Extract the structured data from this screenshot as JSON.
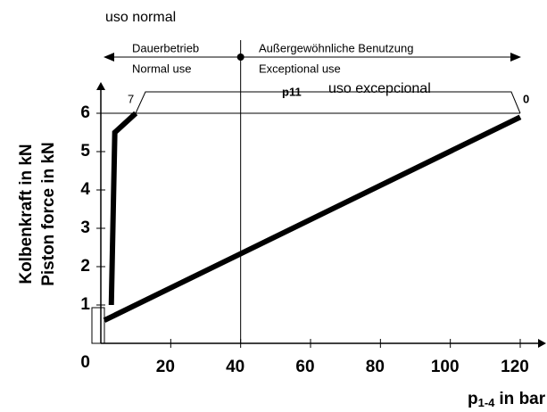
{
  "chart_data": {
    "type": "line",
    "top_label": "uso normal",
    "regions": [
      {
        "de": "Dauerbetrieb",
        "en": "Normal use"
      },
      {
        "de": "Außergewöhnliche Benutzung",
        "en": "Exceptional use"
      }
    ],
    "annotations": {
      "start": "7",
      "middle": "p11",
      "end": "0",
      "overlay": "uso excepcional"
    },
    "y_label": [
      "Kolbenkraft in kN",
      "Piston force in kN"
    ],
    "x_label": {
      "symbol": "p",
      "subscript": "1-4",
      "unit": "in bar"
    },
    "xlim": [
      0,
      120
    ],
    "ylim": [
      0,
      6
    ],
    "xticks": [
      20,
      40,
      60,
      80,
      100,
      120
    ],
    "yticks": [
      0,
      1,
      2,
      3,
      4,
      5,
      6
    ],
    "divider_x": 40,
    "series": [
      {
        "color": "#000000",
        "x": [
          3,
          4,
          10
        ],
        "values": [
          1,
          5.5,
          6
        ]
      },
      {
        "color": "#000000",
        "x": [
          1,
          120
        ],
        "values": [
          0.6,
          5.9
        ]
      }
    ]
  }
}
